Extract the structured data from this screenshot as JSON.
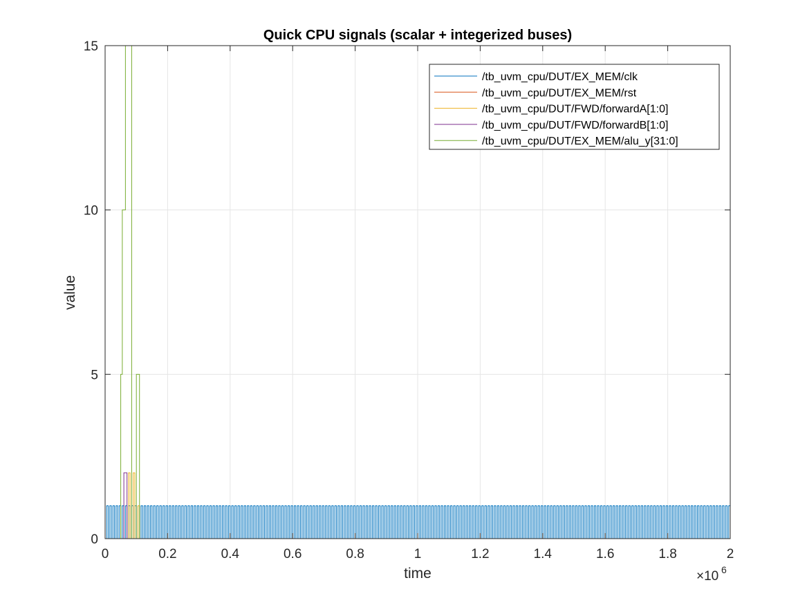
{
  "chart_data": {
    "type": "line",
    "title": "Quick CPU signals (scalar + integerized buses)",
    "xlabel": "time",
    "ylabel": "value",
    "x_exponent_label": "×10",
    "x_exponent_power": "6",
    "xlim": [
      0,
      2000000
    ],
    "ylim": [
      0,
      15
    ],
    "grid": true,
    "legend_position": "top-right",
    "x_ticks": [
      {
        "value": 0,
        "label": "0"
      },
      {
        "value": 200000,
        "label": "0.2"
      },
      {
        "value": 400000,
        "label": "0.4"
      },
      {
        "value": 600000,
        "label": "0.6"
      },
      {
        "value": 800000,
        "label": "0.8"
      },
      {
        "value": 1000000,
        "label": "1"
      },
      {
        "value": 1200000,
        "label": "1.2"
      },
      {
        "value": 1400000,
        "label": "1.4"
      },
      {
        "value": 1600000,
        "label": "1.6"
      },
      {
        "value": 1800000,
        "label": "1.8"
      },
      {
        "value": 2000000,
        "label": "2"
      }
    ],
    "y_ticks": [
      {
        "value": 0,
        "label": "0"
      },
      {
        "value": 5,
        "label": "5"
      },
      {
        "value": 10,
        "label": "10"
      },
      {
        "value": 15,
        "label": "15"
      }
    ],
    "series": [
      {
        "name": "/tb_uvm_cpu/DUT/EX_MEM/clk",
        "color": "#0072BD",
        "kind": "clock",
        "period": 10000,
        "high": 1,
        "low": 0,
        "start": 0,
        "end": 2000000
      },
      {
        "name": "/tb_uvm_cpu/DUT/EX_MEM/rst",
        "color": "#D95319",
        "kind": "step",
        "points": [
          [
            0,
            0
          ],
          [
            2000000,
            0
          ]
        ]
      },
      {
        "name": "/tb_uvm_cpu/DUT/FWD/forwardA[1:0]",
        "color": "#EDB120",
        "kind": "step",
        "points": [
          [
            0,
            0
          ],
          [
            75000,
            2
          ],
          [
            80000,
            0
          ],
          [
            90000,
            2
          ],
          [
            95000,
            0
          ],
          [
            105000,
            1
          ],
          [
            110000,
            0
          ],
          [
            2000000,
            0
          ]
        ]
      },
      {
        "name": "/tb_uvm_cpu/DUT/FWD/forwardB[1:0]",
        "color": "#7E2F8E",
        "kind": "step",
        "points": [
          [
            0,
            0
          ],
          [
            60000,
            2
          ],
          [
            70000,
            0
          ],
          [
            2000000,
            0
          ]
        ]
      },
      {
        "name": "/tb_uvm_cpu/DUT/EX_MEM/alu_y[31:0]",
        "color": "#77AC30",
        "kind": "step",
        "points": [
          [
            0,
            0
          ],
          [
            50000,
            5
          ],
          [
            55000,
            10
          ],
          [
            65000,
            15
          ],
          [
            85000,
            0
          ],
          [
            100000,
            5
          ],
          [
            110000,
            0
          ],
          [
            2000000,
            0
          ]
        ]
      }
    ]
  }
}
